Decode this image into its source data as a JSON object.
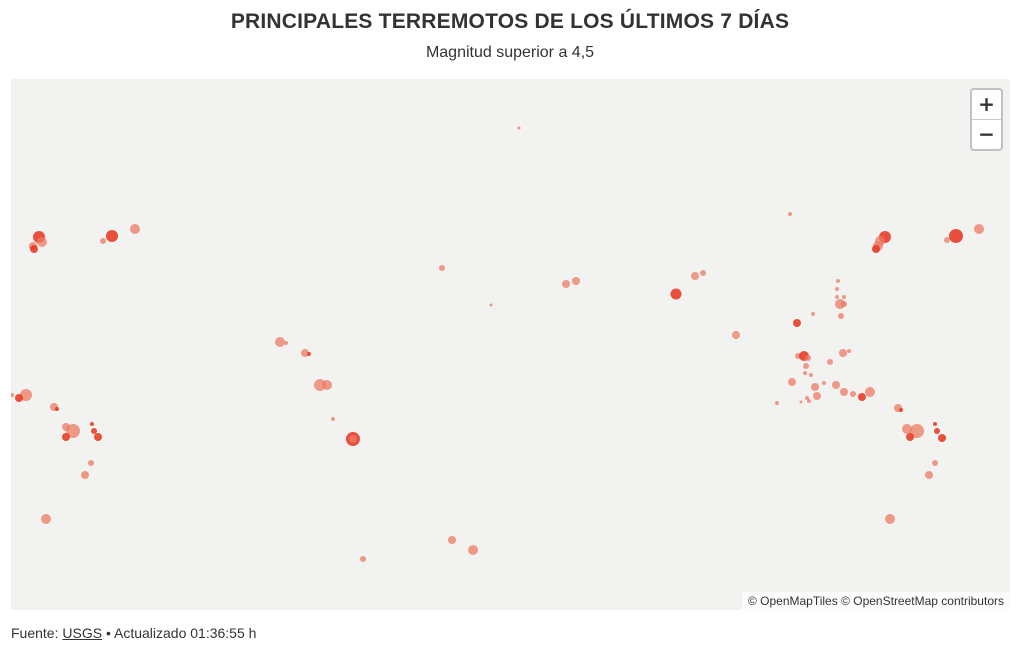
{
  "header": {
    "title": "PRINCIPALES TERREMOTOS DE LOS ÚLTIMOS 7 DÍAS",
    "subtitle": "Magnitud superior a 4,5"
  },
  "map": {
    "zoom_in_label": "+",
    "zoom_out_label": "−",
    "attribution": "© OpenMapTiles © OpenStreetMap contributors",
    "background_color": "#f2f2f0",
    "marker_color_light": "#ec7a63",
    "marker_color_strong": "#e8341c"
  },
  "footer": {
    "source_prefix": "Fuente:",
    "source_link": "USGS",
    "separator": "•",
    "updated_text": "Actualizado 01:36:55 h"
  }
}
